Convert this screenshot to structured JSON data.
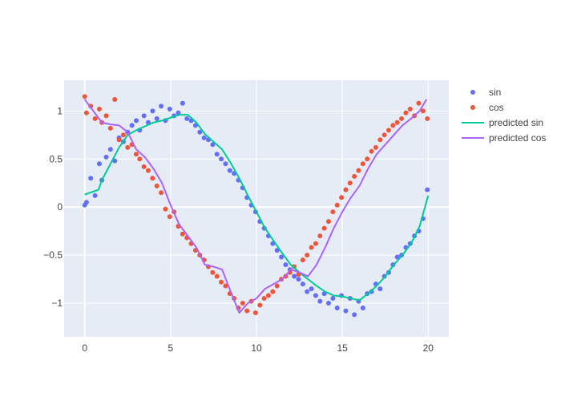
{
  "chart_data": {
    "type": "scatter",
    "title": "",
    "xlabel": "",
    "ylabel": "",
    "xlim": [
      -1.2,
      21.2
    ],
    "ylim": [
      -1.35,
      1.32
    ],
    "x_ticks": [
      0,
      5,
      10,
      15,
      20
    ],
    "y_ticks": [
      -1,
      -0.5,
      0,
      0.5,
      1
    ],
    "x_tick_labels": [
      "0",
      "5",
      "10",
      "15",
      "20"
    ],
    "y_tick_labels": [
      "−1",
      "−0.5",
      "0",
      "0.5",
      "1"
    ],
    "grid": true,
    "legend_position": "right",
    "series": [
      {
        "name": "sin",
        "mode": "markers",
        "color": "#636efa",
        "x": [
          0,
          0.1,
          0.35,
          0.6,
          0.85,
          1.0,
          1.25,
          1.5,
          1.75,
          2.0,
          2.25,
          2.5,
          2.75,
          3.0,
          3.2,
          3.45,
          3.7,
          3.95,
          4.2,
          4.45,
          4.7,
          4.95,
          5.2,
          5.45,
          5.7,
          5.95,
          6.2,
          6.45,
          6.7,
          6.95,
          7.2,
          7.45,
          7.7,
          7.95,
          8.2,
          8.45,
          8.7,
          8.95,
          9.2,
          9.45,
          9.7,
          9.95,
          10.2,
          10.45,
          10.7,
          10.95,
          11.2,
          11.45,
          11.7,
          11.95,
          12.2,
          12.45,
          12.7,
          12.95,
          13.2,
          13.45,
          13.7,
          13.95,
          14.2,
          14.45,
          14.7,
          14.95,
          15.2,
          15.45,
          15.7,
          15.95,
          16.2,
          16.45,
          16.7,
          16.95,
          17.2,
          17.45,
          17.7,
          17.95,
          18.2,
          18.45,
          18.7,
          18.95,
          19.2,
          19.45,
          19.7,
          19.95
        ],
        "y": [
          0.02,
          0.05,
          0.3,
          0.12,
          0.45,
          0.28,
          0.52,
          0.6,
          0.48,
          0.72,
          0.68,
          0.78,
          0.85,
          0.9,
          0.8,
          0.95,
          0.88,
          1.0,
          0.92,
          1.05,
          0.9,
          1.02,
          0.95,
          0.98,
          1.08,
          0.92,
          0.9,
          0.85,
          0.78,
          0.72,
          0.7,
          0.65,
          0.55,
          0.5,
          0.45,
          0.38,
          0.35,
          0.28,
          0.2,
          0.1,
          0.02,
          -0.05,
          -0.15,
          -0.22,
          -0.3,
          -0.38,
          -0.45,
          -0.52,
          -0.6,
          -0.65,
          -0.72,
          -0.75,
          -0.8,
          -0.88,
          -0.85,
          -0.92,
          -0.98,
          -0.9,
          -1.0,
          -0.95,
          -1.05,
          -0.92,
          -1.08,
          -0.95,
          -1.12,
          -0.98,
          -1.05,
          -0.9,
          -0.88,
          -0.8,
          -0.85,
          -0.72,
          -0.68,
          -0.6,
          -0.52,
          -0.5,
          -0.42,
          -0.38,
          -0.3,
          -0.25,
          -0.12,
          0.18
        ]
      },
      {
        "name": "cos",
        "mode": "markers",
        "color": "#ef553b",
        "x": [
          0,
          0.1,
          0.35,
          0.6,
          0.85,
          1.0,
          1.25,
          1.5,
          1.75,
          2.0,
          2.25,
          2.5,
          2.75,
          3.0,
          3.2,
          3.45,
          3.7,
          3.95,
          4.2,
          4.45,
          4.7,
          4.95,
          5.2,
          5.45,
          5.7,
          5.95,
          6.2,
          6.45,
          6.7,
          6.95,
          7.2,
          7.45,
          7.7,
          7.95,
          8.2,
          8.45,
          8.7,
          8.95,
          9.2,
          9.45,
          9.7,
          9.95,
          10.2,
          10.45,
          10.7,
          10.95,
          11.2,
          11.45,
          11.7,
          11.95,
          12.2,
          12.45,
          12.7,
          12.95,
          13.2,
          13.45,
          13.7,
          13.95,
          14.2,
          14.45,
          14.7,
          14.95,
          15.2,
          15.45,
          15.7,
          15.95,
          16.2,
          16.45,
          16.7,
          16.95,
          17.2,
          17.45,
          17.7,
          17.95,
          18.2,
          18.45,
          18.7,
          18.95,
          19.2,
          19.45,
          19.7,
          19.95
        ],
        "y": [
          1.15,
          0.98,
          1.05,
          0.92,
          1.02,
          0.88,
          0.95,
          0.82,
          1.12,
          0.7,
          0.75,
          0.62,
          0.65,
          0.55,
          0.5,
          0.42,
          0.38,
          0.3,
          0.22,
          0.15,
          -0.02,
          -0.1,
          -0.05,
          -0.2,
          -0.28,
          -0.32,
          -0.38,
          -0.45,
          -0.5,
          -0.55,
          -0.62,
          -0.68,
          -0.72,
          -0.78,
          -0.82,
          -0.9,
          -0.95,
          -1.05,
          -1.0,
          -1.08,
          -0.98,
          -1.1,
          -1.02,
          -0.95,
          -0.92,
          -0.88,
          -0.82,
          -0.75,
          -0.72,
          -0.68,
          -0.62,
          -0.7,
          -0.55,
          -0.5,
          -0.42,
          -0.38,
          -0.3,
          -0.22,
          -0.15,
          -0.05,
          0.02,
          0.1,
          0.18,
          0.25,
          0.32,
          0.38,
          0.45,
          0.5,
          0.58,
          0.62,
          0.7,
          0.75,
          0.8,
          0.85,
          0.88,
          0.92,
          0.98,
          1.02,
          0.95,
          1.08,
          1.0,
          0.92
        ]
      },
      {
        "name": "predicted sin",
        "mode": "lines",
        "color": "#00cc96",
        "x": [
          0,
          0.8,
          1.0,
          1.5,
          2.0,
          2.5,
          3.0,
          3.5,
          4.0,
          4.5,
          5.0,
          5.5,
          6.0,
          6.5,
          7.0,
          7.5,
          8.0,
          8.5,
          9.0,
          9.5,
          10.0,
          10.5,
          11.0,
          11.5,
          12.0,
          12.5,
          13.0,
          13.5,
          14.0,
          14.5,
          15.0,
          15.5,
          16.0,
          16.5,
          17.0,
          17.5,
          18.0,
          18.5,
          19.0,
          19.5,
          20.0
        ],
        "y": [
          0.13,
          0.18,
          0.28,
          0.45,
          0.62,
          0.75,
          0.8,
          0.84,
          0.88,
          0.9,
          0.93,
          0.96,
          0.96,
          0.88,
          0.76,
          0.68,
          0.6,
          0.46,
          0.3,
          0.12,
          -0.05,
          -0.22,
          -0.35,
          -0.48,
          -0.6,
          -0.68,
          -0.75,
          -0.82,
          -0.88,
          -0.92,
          -0.93,
          -0.95,
          -0.97,
          -0.9,
          -0.82,
          -0.72,
          -0.6,
          -0.5,
          -0.38,
          -0.2,
          0.12
        ]
      },
      {
        "name": "predicted cos",
        "mode": "lines",
        "color": "#ab63fa",
        "x": [
          0,
          0.5,
          1.0,
          1.5,
          2.0,
          2.5,
          3.0,
          3.5,
          4.0,
          4.5,
          5.0,
          5.5,
          6.0,
          6.5,
          7.0,
          7.5,
          8.0,
          8.5,
          9.0,
          9.5,
          10.0,
          10.5,
          11.0,
          11.5,
          12.0,
          12.5,
          13.0,
          13.5,
          14.0,
          14.5,
          15.0,
          15.5,
          16.0,
          16.5,
          17.0,
          17.5,
          18.0,
          18.5,
          19.0,
          19.5,
          19.9
        ],
        "y": [
          1.12,
          1.0,
          0.88,
          0.86,
          0.85,
          0.78,
          0.6,
          0.52,
          0.4,
          0.25,
          0.02,
          -0.18,
          -0.3,
          -0.42,
          -0.6,
          -0.62,
          -0.65,
          -0.88,
          -1.1,
          -1.0,
          -0.95,
          -0.85,
          -0.8,
          -0.75,
          -0.65,
          -0.68,
          -0.72,
          -0.6,
          -0.42,
          -0.22,
          -0.05,
          0.1,
          0.22,
          0.4,
          0.55,
          0.65,
          0.75,
          0.85,
          0.92,
          1.0,
          1.12
        ]
      }
    ]
  }
}
